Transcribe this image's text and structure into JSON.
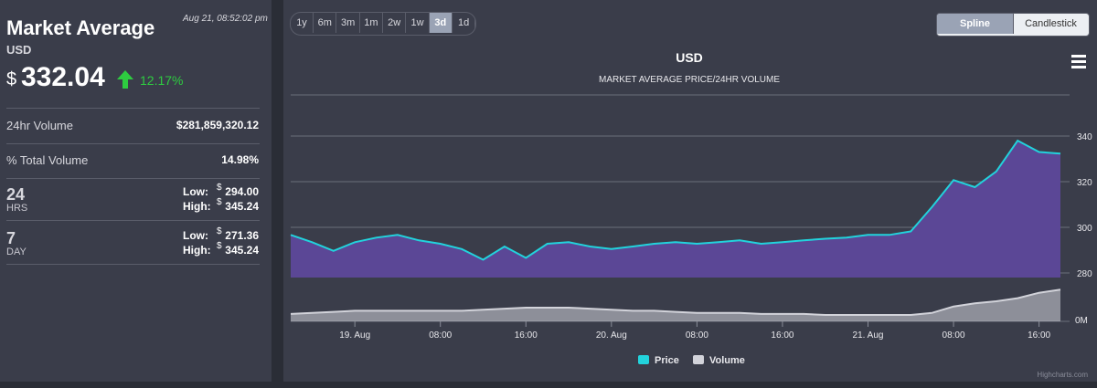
{
  "panel": {
    "title": "Market Average",
    "currency": "USD",
    "timestamp": "Aug 21, 08:52:02 pm",
    "currency_symbol": "$",
    "price": "332.04",
    "change": "12.17%",
    "rows": [
      {
        "label": "24hr Volume",
        "value": "$281,859,320.12"
      },
      {
        "label": "% Total Volume",
        "value": "14.98%"
      }
    ],
    "ranges": [
      {
        "number": "24",
        "unit": "HRS",
        "low_label": "Low:",
        "low": "294.00",
        "high_label": "High:",
        "high": "345.24"
      },
      {
        "number": "7",
        "unit": "DAY",
        "low_label": "Low:",
        "low": "271.36",
        "high_label": "High:",
        "high": "345.24"
      }
    ]
  },
  "controls": {
    "zoom_buttons": [
      "1y",
      "6m",
      "3m",
      "1m",
      "2w",
      "1w",
      "3d",
      "1d"
    ],
    "zoom_selected": "3d",
    "chart_types": [
      "Spline",
      "Candlestick"
    ],
    "chart_type_selected": "Spline"
  },
  "chart_data": {
    "type": "area",
    "title": "USD",
    "subtitle": "MARKET AVERAGE PRICE/24HR VOLUME",
    "categories": [
      null,
      null,
      null,
      "19. Aug",
      null,
      null,
      null,
      "08:00",
      null,
      null,
      null,
      "16:00",
      null,
      null,
      null,
      "20. Aug",
      null,
      null,
      null,
      "08:00",
      null,
      null,
      null,
      "16:00",
      null,
      null,
      null,
      "21. Aug",
      null,
      null,
      null,
      "08:00",
      null,
      null,
      null,
      "16:00",
      null
    ],
    "series": [
      {
        "name": "Price",
        "color": "#22d3dc",
        "fill": "#5b4796",
        "values": [
          296.7,
          293.5,
          289.7,
          293.5,
          295.5,
          296.7,
          294.3,
          292.8,
          290.5,
          285.8,
          291.6,
          286.6,
          292.8,
          293.5,
          291.6,
          290.5,
          291.6,
          292.8,
          293.5,
          292.8,
          293.5,
          294.3,
          292.8,
          293.5,
          294.3,
          295.0,
          295.5,
          296.7,
          296.7,
          298.2,
          309.0,
          320.7,
          317.6,
          324.5,
          338.0,
          333.0,
          332.3
        ]
      },
      {
        "name": "Volume",
        "color": "#d2d3da",
        "axis": "y2",
        "values": [
          66000000,
          76000000,
          85000000,
          95000000,
          95000000,
          95000000,
          95000000,
          95000000,
          95000000,
          104000000,
          114000000,
          123000000,
          123000000,
          123000000,
          114000000,
          104000000,
          95000000,
          95000000,
          85000000,
          76000000,
          76000000,
          76000000,
          66000000,
          66000000,
          66000000,
          57000000,
          57000000,
          57000000,
          57000000,
          57000000,
          76000000,
          133000000,
          161000000,
          180000000,
          208000000,
          256000000,
          284000000
        ]
      }
    ],
    "ylim": [
      278,
      358
    ],
    "yticks": [
      280,
      300,
      320,
      340
    ],
    "y2lim": [
      0,
      360000000
    ],
    "y2ticks": [
      {
        "value": 0,
        "label": "0M"
      }
    ],
    "grid": true,
    "legend": "bottom",
    "credit": "Highcharts.com"
  }
}
